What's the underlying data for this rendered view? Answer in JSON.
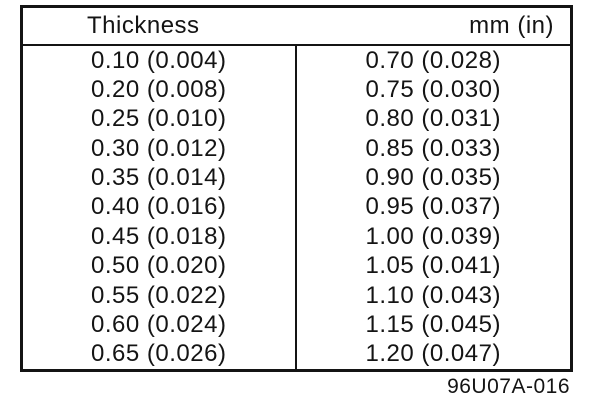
{
  "table": {
    "header": {
      "left": "Thickness",
      "right": "mm (in)"
    },
    "left_column": [
      "0.10 (0.004)",
      "0.20 (0.008)",
      "0.25 (0.010)",
      "0.30 (0.012)",
      "0.35 (0.014)",
      "0.40 (0.016)",
      "0.45 (0.018)",
      "0.50 (0.020)",
      "0.55 (0.022)",
      "0.60 (0.024)",
      "0.65 (0.026)"
    ],
    "right_column": [
      "0.70 (0.028)",
      "0.75 (0.030)",
      "0.80 (0.031)",
      "0.85 (0.033)",
      "0.90 (0.035)",
      "0.95 (0.037)",
      "1.00 (0.039)",
      "1.05 (0.041)",
      "1.10 (0.043)",
      "1.15 (0.045)",
      "1.20 (0.047)"
    ]
  },
  "footer": {
    "reference_code": "96U07A-016"
  },
  "colors": {
    "ink": "#141414",
    "background": "#ffffff"
  }
}
